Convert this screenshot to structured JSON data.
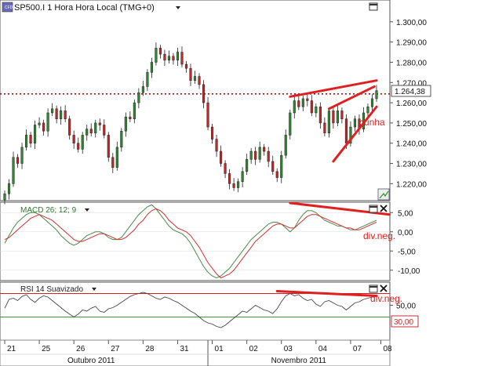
{
  "header": {
    "app_icon": "cfd-icon",
    "symbol_label": "SP500.I 1 Hora Hora Local (TMG+0)",
    "current_price": "1.264,38"
  },
  "colors": {
    "bull": "#2c8a2c",
    "bear": "#cc2222",
    "macd_line": "#4a8a4a",
    "signal_line": "#d03030",
    "rsi_line": "#444444",
    "annotation": "#e02020",
    "rsi_upper": "#cc2222",
    "rsi_lower": "#3a9a3a"
  },
  "chart_data": [
    {
      "type": "candlestick",
      "title": "SP500.I 1 Hora Hora Local (TMG+0)",
      "ylim": [
        1212,
        1310
      ],
      "y_ticks": [
        "1.220,00",
        "1.230,00",
        "1.240,00",
        "1.250,00",
        "1.260,00",
        "1.270,00",
        "1.280,00",
        "1.290,00",
        "1.300,00"
      ],
      "y_tick_values": [
        1220,
        1230,
        1240,
        1250,
        1260,
        1270,
        1280,
        1290,
        1300
      ],
      "price_line": 1264.38,
      "closes": [
        1215,
        1220,
        1233,
        1230,
        1238,
        1244,
        1240,
        1249,
        1250,
        1246,
        1255,
        1257,
        1252,
        1256,
        1252,
        1244,
        1240,
        1237,
        1244,
        1247,
        1245,
        1250,
        1249,
        1244,
        1233,
        1228,
        1238,
        1246,
        1253,
        1252,
        1260,
        1265,
        1268,
        1275,
        1280,
        1287,
        1284,
        1281,
        1283,
        1281,
        1285,
        1279,
        1277,
        1271,
        1273,
        1269,
        1260,
        1248,
        1242,
        1236,
        1230,
        1225,
        1220,
        1218,
        1221,
        1226,
        1232,
        1236,
        1232,
        1238,
        1236,
        1231,
        1226,
        1223,
        1234,
        1244,
        1255,
        1261,
        1258,
        1262,
        1261,
        1255,
        1258,
        1250,
        1245,
        1256,
        1250,
        1256,
        1252,
        1240,
        1248,
        1252,
        1247,
        1255,
        1258,
        1262,
        1266
      ],
      "annotations": [
        {
          "type": "trendline",
          "points": [
            [
              66,
              1263
            ],
            [
              86,
              1271
            ]
          ]
        },
        {
          "type": "trendline",
          "points": [
            [
              75,
              1257
            ],
            [
              85.5,
              1268
            ]
          ]
        },
        {
          "type": "trendline",
          "points": [
            [
              76,
              1231
            ],
            [
              86,
              1258
            ]
          ]
        },
        {
          "type": "text",
          "text": "cunha"
        }
      ]
    },
    {
      "type": "line",
      "title": "MACD 26; 12; 9",
      "ylim": [
        -12.5,
        7.5
      ],
      "y_ticks": [
        "5,00",
        "0,00",
        "-5,00",
        "-10,00"
      ],
      "y_tick_values": [
        5,
        0,
        -5,
        -10
      ],
      "series": [
        {
          "name": "MACD",
          "values": [
            -3,
            -1,
            1,
            2.5,
            3.5,
            4.5,
            5,
            5,
            4.5,
            3.5,
            2.5,
            1.5,
            0.5,
            -1,
            -2,
            -3,
            -3.5,
            -3,
            -2,
            -1,
            -0.5,
            0,
            0,
            -0.5,
            -1.5,
            -2,
            -2,
            -1.5,
            0,
            1.5,
            3,
            4.5,
            5.5,
            6.5,
            7,
            6,
            4.5,
            3,
            1.5,
            0.5,
            0,
            -0.5,
            -1.5,
            -3,
            -5,
            -7,
            -9,
            -10.5,
            -11.5,
            -12,
            -11.5,
            -10.5,
            -9.5,
            -8,
            -6.5,
            -5,
            -3.5,
            -2,
            -1,
            0,
            1,
            2,
            2.5,
            2.5,
            2,
            1,
            0,
            1,
            3,
            4.5,
            5.5,
            5.5,
            5,
            4,
            3,
            2.5,
            2,
            1.5,
            1.5,
            1,
            0.5,
            0.5,
            1,
            1.5,
            2,
            2.5,
            3
          ]
        },
        {
          "name": "Signal",
          "values": [
            -2,
            -1.5,
            -0.5,
            0.5,
            1.5,
            2.5,
            3.5,
            4,
            4.5,
            4,
            3.5,
            3,
            2,
            1,
            0,
            -1,
            -2,
            -2.5,
            -2.5,
            -2,
            -1.5,
            -1,
            -0.5,
            -0.5,
            -1,
            -1.5,
            -2,
            -2,
            -1.5,
            -0.5,
            0.5,
            2,
            3,
            4.5,
            5.5,
            6,
            5.5,
            4.5,
            3,
            2,
            1,
            0.5,
            0,
            -1,
            -2.5,
            -4,
            -6,
            -8,
            -9.5,
            -11,
            -12,
            -11.5,
            -11,
            -10,
            -8.5,
            -7,
            -5.5,
            -4,
            -2.5,
            -1.5,
            -0.5,
            0.5,
            1.5,
            2,
            2,
            1.5,
            1,
            1,
            2,
            3,
            4,
            4.5,
            4.5,
            4,
            3.5,
            3,
            2.5,
            2,
            1.5,
            1,
            1,
            0.5,
            0.5,
            1,
            1.5,
            2,
            2.5
          ]
        }
      ],
      "annotations": [
        {
          "type": "trendline",
          "points": [
            [
              66,
              7.5
            ],
            [
              89,
              4.5
            ]
          ]
        },
        {
          "type": "text",
          "text": "div.neg."
        }
      ]
    },
    {
      "type": "line",
      "title": "RSI 14 Suavizado",
      "ylim": [
        -8,
        88
      ],
      "y_ticks": [
        "50,00"
      ],
      "y_tick_values": [
        50
      ],
      "highlight_tick": "30,00",
      "levels": [
        70,
        30
      ],
      "series": [
        {
          "name": "RSI",
          "values": [
            45,
            60,
            62,
            58,
            65,
            68,
            60,
            55,
            62,
            66,
            64,
            58,
            52,
            46,
            40,
            35,
            30,
            35,
            42,
            40,
            45,
            48,
            40,
            38,
            44,
            46,
            50,
            55,
            60,
            65,
            68,
            70,
            72,
            70,
            66,
            62,
            60,
            64,
            62,
            58,
            55,
            50,
            45,
            40,
            36,
            30,
            24,
            20,
            18,
            14,
            12,
            16,
            22,
            28,
            34,
            40,
            38,
            44,
            50,
            46,
            42,
            40,
            36,
            44,
            56,
            66,
            70,
            66,
            68,
            62,
            58,
            60,
            52,
            48,
            56,
            58,
            54,
            50,
            48,
            42,
            48,
            54,
            56,
            60,
            62,
            64,
            66
          ]
        }
      ],
      "annotations": [
        {
          "type": "trendline",
          "points": [
            [
              63,
              74
            ],
            [
              86,
              66
            ]
          ]
        },
        {
          "type": "text",
          "text": "div.neg."
        }
      ]
    }
  ],
  "x_axis": {
    "labels": [
      "21",
      "25",
      "26",
      "27",
      "28",
      "31",
      "01",
      "02",
      "03",
      "04",
      "07",
      "08"
    ],
    "label_positions": [
      0,
      8,
      16,
      24,
      32,
      40,
      48,
      56,
      64,
      72,
      80,
      87
    ],
    "months": [
      {
        "label": "Outubro 2011",
        "pos": 20
      },
      {
        "label": "Novembro 2011",
        "pos": 68
      }
    ],
    "month_boundary": 47
  },
  "icons": [
    "close-icon",
    "maximize-icon",
    "navigator-icon",
    "dropdown-arrow-icon"
  ]
}
